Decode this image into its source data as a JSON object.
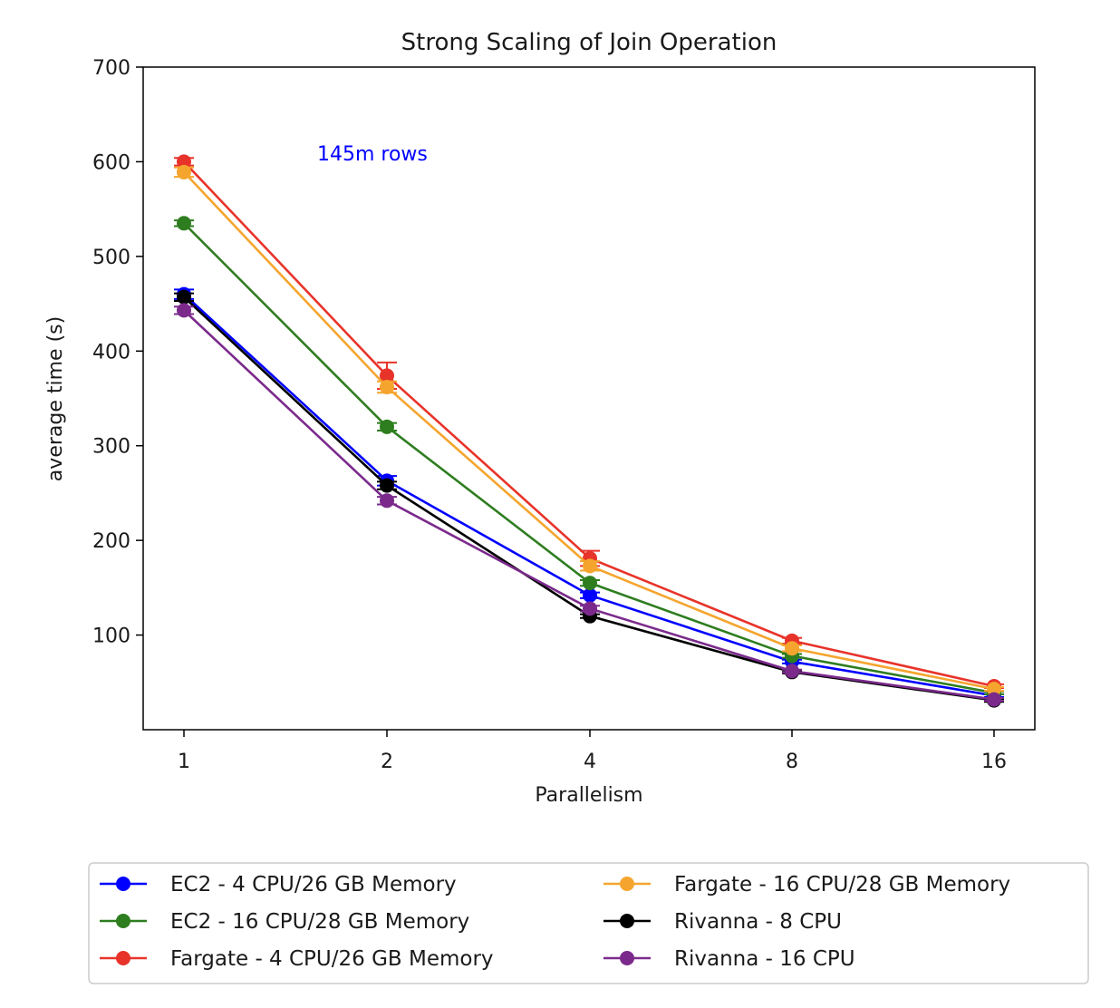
{
  "chart_data": {
    "type": "line",
    "title": "Strong Scaling of Join Operation",
    "xlabel": "Parallelism",
    "ylabel": "average time (s)",
    "x": [
      1,
      2,
      4,
      8,
      16
    ],
    "x_tick_labels": [
      "1",
      "2",
      "4",
      "8",
      "16"
    ],
    "x_scale": "categorical",
    "y_ticks": [
      100,
      200,
      300,
      400,
      500,
      600,
      700
    ],
    "ylim": [
      0,
      700
    ],
    "grid": false,
    "legend_position": "below plot, two columns",
    "annotation": {
      "text": "145m rows",
      "color": "#0000ff"
    },
    "series": [
      {
        "name": "EC2 - 4 CPU/26 GB Memory",
        "color": "#0000ff",
        "values": [
          460,
          263,
          142,
          72,
          36
        ],
        "errors": [
          5,
          5,
          3,
          2,
          1.5
        ]
      },
      {
        "name": "EC2 - 16 CPU/28 GB Memory",
        "color": "#2e7d1f",
        "values": [
          535,
          320,
          155,
          78,
          39
        ],
        "errors": [
          3,
          4,
          3,
          2,
          1.5
        ]
      },
      {
        "name": "Fargate - 4 CPU/26 GB Memory",
        "color": "#e8332a",
        "values": [
          600,
          374,
          181,
          94,
          46
        ],
        "errors": [
          4,
          14,
          8,
          3,
          2
        ]
      },
      {
        "name": "Fargate - 16 CPU/28 GB Memory",
        "color": "#f5a52e",
        "values": [
          589,
          362,
          173,
          86,
          43
        ],
        "errors": [
          5,
          6,
          5,
          3,
          2
        ]
      },
      {
        "name": "Rivanna - 8 CPU",
        "color": "#000000",
        "values": [
          457,
          258,
          120,
          61,
          31
        ],
        "errors": [
          4,
          4,
          2,
          1.5,
          1.5
        ]
      },
      {
        "name": "Rivanna - 16 CPU",
        "color": "#7b2a8c",
        "values": [
          443,
          242,
          128,
          62,
          32
        ],
        "errors": [
          4,
          4,
          3,
          1.5,
          1.5
        ]
      }
    ]
  }
}
